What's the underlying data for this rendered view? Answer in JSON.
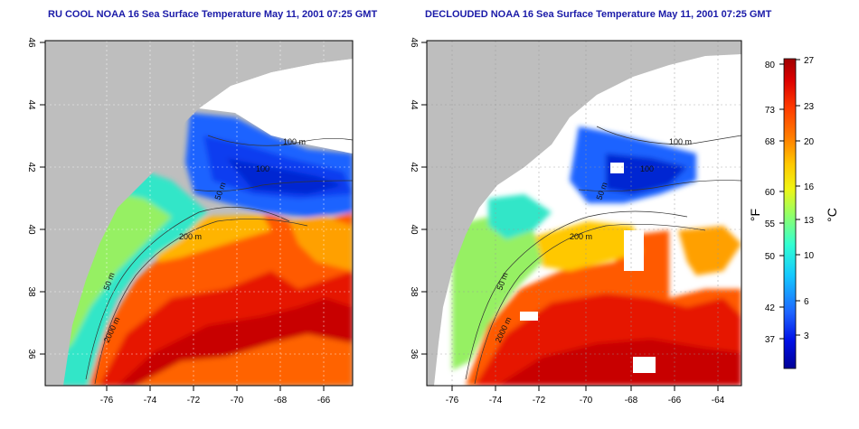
{
  "titles": {
    "left": "RU COOL NOAA 16 Sea Surface Temperature May 11, 2001 07:25 GMT",
    "right": "DECLOUDED NOAA 16 Sea Surface Temperature May 11, 2001 07:25 GMT"
  },
  "axes": {
    "lon_ticks": [
      "-76",
      "-74",
      "-72",
      "-70",
      "-68",
      "-66",
      "-64"
    ],
    "lat_ticks": [
      "46",
      "44",
      "42",
      "40",
      "38",
      "36"
    ],
    "lon_range": [
      -77.0,
      -63.0
    ],
    "lat_range": [
      35.0,
      46.0
    ]
  },
  "contour_labels": [
    "100 m",
    "100",
    "50 m",
    "200 m",
    "50 m",
    "2000 m"
  ],
  "colorbar": {
    "fahrenheit_label": "°F",
    "celsius_label": "°C",
    "fahrenheit_ticks": [
      "80",
      "73",
      "68",
      "60",
      "55",
      "50",
      "42",
      "37"
    ],
    "celsius_ticks": [
      "27",
      "23",
      "20",
      "16",
      "13",
      "10",
      "6",
      "3"
    ],
    "colors": [
      "#000096",
      "#0010e6",
      "#1e64ff",
      "#14c8ff",
      "#32ffd2",
      "#96ff64",
      "#f0f514",
      "#ffc800",
      "#ff8200",
      "#ff3c00",
      "#dc0000",
      "#a00000"
    ]
  },
  "colors": {
    "land": "#bebebe",
    "cloud": "#ffffff",
    "title": "#1a1aa8"
  }
}
